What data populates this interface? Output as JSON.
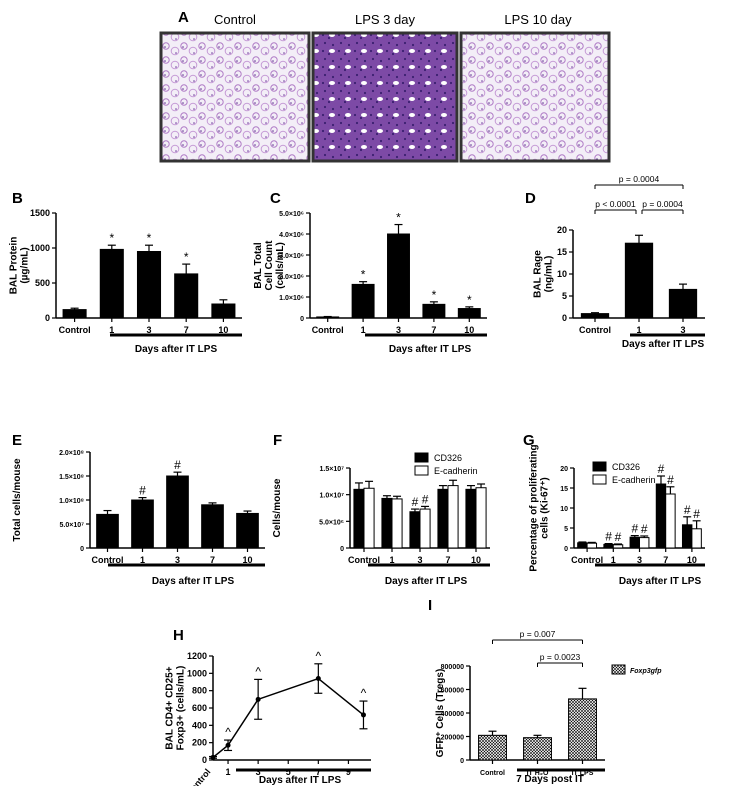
{
  "figure": {
    "panels": {
      "A": {
        "letter": "A",
        "image_titles": [
          "Control",
          "LPS 3 day",
          "LPS 10 day"
        ]
      }
    }
  },
  "chart_data": [
    {
      "id": "B",
      "letter": "B",
      "type": "bar",
      "ylabel": "BAL Protein\n(µg/mL)",
      "xlabel": "Days after IT LPS",
      "categories": [
        "Control",
        "1",
        "3",
        "7",
        "10"
      ],
      "values": [
        120,
        980,
        950,
        630,
        200
      ],
      "errors": [
        20,
        60,
        90,
        140,
        60
      ],
      "annotations": [
        "",
        "*",
        "*",
        "*",
        ""
      ],
      "ylim": [
        0,
        1500
      ],
      "yticks": [
        0,
        500,
        1000,
        1500
      ],
      "ytick_labels": [
        "0",
        "500",
        "1000",
        "1500"
      ]
    },
    {
      "id": "C",
      "letter": "C",
      "type": "bar",
      "ylabel": "BAL Total\nCell Count\n(cells/mL)",
      "xlabel": "Days after IT LPS",
      "categories": [
        "Control",
        "1",
        "3",
        "7",
        "10"
      ],
      "values": [
        50000,
        1600000,
        4000000,
        650000,
        450000
      ],
      "errors": [
        20000,
        130000,
        450000,
        120000,
        80000
      ],
      "annotations": [
        "",
        "*",
        "*",
        "*",
        "*"
      ],
      "ylim": [
        0,
        5000000
      ],
      "yticks": [
        0,
        1000000,
        2000000,
        3000000,
        4000000,
        5000000
      ],
      "ytick_labels": [
        "0",
        "1.0×10⁶",
        "2.0×10⁶",
        "3.0×10⁶",
        "4.0×10⁶",
        "5.0×10⁶"
      ]
    },
    {
      "id": "D",
      "letter": "D",
      "type": "bar",
      "ylabel": "BAL Rage\n(ng/mL)",
      "xlabel": "Days after IT LPS",
      "categories": [
        "Control",
        "1",
        "3"
      ],
      "values": [
        1,
        17,
        6.5
      ],
      "errors": [
        0.2,
        1.8,
        1.2
      ],
      "ylim": [
        0,
        20
      ],
      "yticks": [
        0,
        5,
        10,
        15,
        20
      ],
      "ytick_labels": [
        "0",
        "5",
        "10",
        "15",
        "20"
      ],
      "brackets": [
        {
          "from": 0,
          "to": 2,
          "label": "p = 0.0004"
        },
        {
          "from": 0,
          "to": 1,
          "label": "p < 0.0001"
        },
        {
          "from": 1,
          "to": 2,
          "label": "p = 0.0004"
        }
      ]
    },
    {
      "id": "E",
      "letter": "E",
      "type": "bar",
      "ylabel": "Total cells/mouse",
      "xlabel": "Days after IT LPS",
      "categories": [
        "Control",
        "1",
        "3",
        "7",
        "10"
      ],
      "values": [
        70000000,
        100000000,
        150000000,
        90000000,
        72000000
      ],
      "errors": [
        8000000,
        5000000,
        8000000,
        4000000,
        5000000
      ],
      "annotations": [
        "",
        "#",
        "#",
        "",
        ""
      ],
      "ylim": [
        0,
        200000000
      ],
      "yticks": [
        0,
        50000000,
        100000000,
        150000000,
        200000000
      ],
      "ytick_labels": [
        "0",
        "5.0×10⁷",
        "1.0×10⁸",
        "1.5×10⁸",
        "2.0×10⁸"
      ]
    },
    {
      "id": "F",
      "letter": "F",
      "type": "bar",
      "ylabel": "Cells/mouse",
      "xlabel": "Days after IT LPS",
      "categories": [
        "Control",
        "1",
        "3",
        "7",
        "10"
      ],
      "series": [
        {
          "name": "CD326",
          "color": "#000000",
          "values": [
            11000000,
            9300000,
            6800000,
            11000000,
            11000000
          ],
          "errors": [
            1200000,
            500000,
            500000,
            700000,
            700000
          ],
          "annotations": [
            "",
            "",
            "#",
            "",
            ""
          ]
        },
        {
          "name": "E-cadherin",
          "color": "#ffffff",
          "values": [
            11200000,
            9200000,
            7300000,
            11700000,
            11300000
          ],
          "errors": [
            1300000,
            500000,
            500000,
            1000000,
            700000
          ],
          "annotations": [
            "",
            "",
            "#",
            "",
            ""
          ]
        }
      ],
      "ylim": [
        0,
        15000000
      ],
      "yticks": [
        0,
        5000000,
        10000000,
        15000000
      ],
      "ytick_labels": [
        "0",
        "5.0×10⁶",
        "1.0×10⁷",
        "1.5×10⁷"
      ],
      "legend_position": "top-right"
    },
    {
      "id": "G",
      "letter": "G",
      "type": "bar",
      "ylabel": "Percentage of proliferating\ncells (Ki-67⁺)",
      "xlabel": "Days after IT LPS",
      "categories": [
        "Control",
        "1",
        "3",
        "7",
        "10"
      ],
      "series": [
        {
          "name": "CD326",
          "color": "#000000",
          "values": [
            1.3,
            0.9,
            2.7,
            16,
            5.8
          ],
          "errors": [
            0.2,
            0.2,
            0.4,
            2,
            2
          ],
          "annotations": [
            "",
            "#",
            "#",
            "#",
            "#"
          ]
        },
        {
          "name": "E-cadherin",
          "color": "#ffffff",
          "values": [
            1.2,
            0.8,
            2.6,
            13.5,
            4.8
          ],
          "errors": [
            0.2,
            0.2,
            0.4,
            1.8,
            2
          ],
          "annotations": [
            "",
            "#",
            "#",
            "#",
            "#"
          ]
        }
      ],
      "ylim": [
        0,
        20
      ],
      "yticks": [
        0,
        5,
        10,
        15,
        20
      ],
      "ytick_labels": [
        "0",
        "5",
        "10",
        "15",
        "20"
      ],
      "legend_position": "top-right"
    },
    {
      "id": "H",
      "letter": "H",
      "type": "line",
      "ylabel": "BAL  CD4+  CD25+\nFoxp3+ (cells/mL)",
      "xlabel": "Days after IT LPS",
      "x": [
        0,
        1,
        3,
        7,
        10
      ],
      "y": [
        30,
        170,
        700,
        940,
        520
      ],
      "errors": [
        10,
        60,
        230,
        170,
        160
      ],
      "annotations": [
        "",
        "^",
        "^",
        "^",
        "^"
      ],
      "xlim": [
        0,
        10.5
      ],
      "xticks": [
        1,
        3,
        5,
        7,
        9
      ],
      "xtick_labels": [
        "1",
        "3",
        "5",
        "7",
        "9"
      ],
      "control_label": "Control",
      "ylim": [
        0,
        1200
      ],
      "yticks": [
        0,
        200,
        400,
        600,
        800,
        1000,
        1200
      ],
      "ytick_labels": [
        "0",
        "200",
        "400",
        "600",
        "800",
        "1000",
        "1200"
      ]
    },
    {
      "id": "I",
      "letter": "I",
      "type": "bar",
      "ylabel": "GFP⁺ Cells  (Tregs)",
      "xlabel": "7 Days post IT",
      "categories": [
        "Control",
        "IT H₂O",
        "IT LPS"
      ],
      "values": [
        210000,
        190000,
        520000
      ],
      "errors": [
        35000,
        20000,
        90000
      ],
      "ylim": [
        0,
        800000
      ],
      "yticks": [
        0,
        200000,
        400000,
        600000,
        800000
      ],
      "ytick_labels": [
        "0",
        "200000",
        "400000",
        "600000",
        "800000"
      ],
      "legend": "Foxp3gfp",
      "brackets": [
        {
          "from": 0,
          "to": 2,
          "label": "p = 0.007"
        },
        {
          "from": 1,
          "to": 2,
          "label": "p = 0.0023"
        }
      ]
    }
  ]
}
